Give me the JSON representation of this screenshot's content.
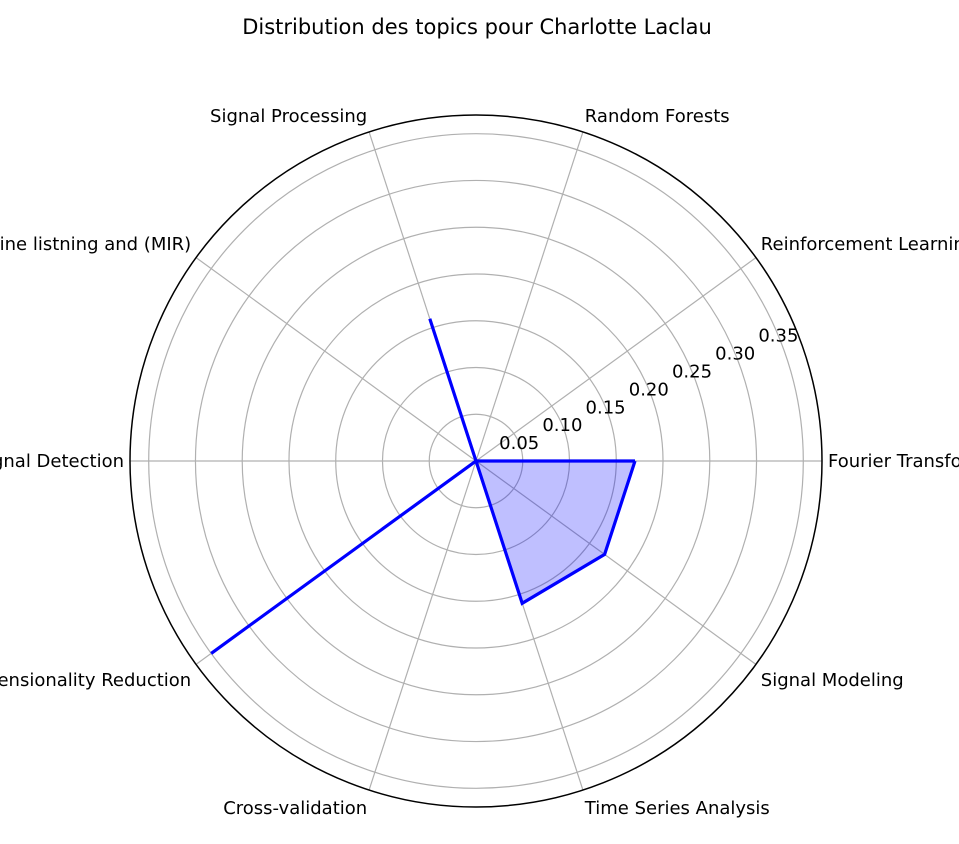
{
  "chart_data": {
    "type": "radar",
    "title": "Distribution des topics pour Charlotte Laclau",
    "categories": [
      "Fourier Transform",
      "Reinforcement Learning",
      "Random Forests",
      "Signal Processing",
      "Machine listning and (MIR)",
      "Signal Detection",
      "Dimensionality Reduction",
      "Cross-validation",
      "Time Series Analysis",
      "Signal Modeling"
    ],
    "series": [
      {
        "values": [
          0.17,
          0.0,
          0.0,
          0.16,
          0.0,
          0.0,
          0.35,
          0.0,
          0.16,
          0.17
        ],
        "line_color": "#0000ff",
        "fill_color": "#0000ff",
        "fill_opacity": 0.25
      }
    ],
    "radial_ticks": [
      "0.05",
      "0.10",
      "0.15",
      "0.20",
      "0.25",
      "0.30",
      "0.35"
    ],
    "radial_tick_values": [
      0.05,
      0.1,
      0.15,
      0.2,
      0.25,
      0.3,
      0.35
    ],
    "rlim": [
      0,
      0.37
    ],
    "grid": true,
    "grid_color": "#b0b0b0"
  }
}
